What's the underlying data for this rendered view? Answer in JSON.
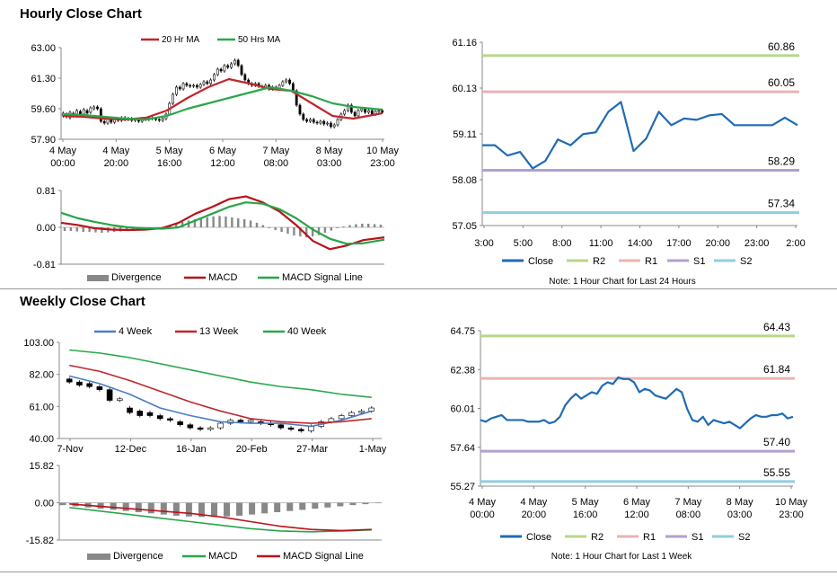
{
  "titles": {
    "hourly": "Hourly Close Chart",
    "weekly": "Weekly Close Chart"
  },
  "colors": {
    "ma_short": "#c0262d",
    "ma_long": "#2aa84a",
    "price": "#000000",
    "close": "#1f6bb5",
    "r2": "#b8d68a",
    "r1": "#eab3b3",
    "s1": "#b39fcf",
    "s2": "#92cde0",
    "divergence": "#888888",
    "macd": "#b8121a",
    "signal": "#27a546",
    "wk4": "#4a7cc4"
  },
  "chart_data": [
    {
      "id": "hourly_price",
      "type": "line",
      "legend": [
        "20 Hr MA",
        "50 Hrs MA"
      ],
      "y_ticks": [
        "63.00",
        "61.30",
        "59.60",
        "57.90"
      ],
      "ylim": [
        57.9,
        63.0
      ],
      "x_labels": [
        [
          "4 May",
          "00:00"
        ],
        [
          "4 May",
          "20:00"
        ],
        [
          "5 May",
          "16:00"
        ],
        [
          "6 May",
          "12:00"
        ],
        [
          "7 May",
          "08:00"
        ],
        [
          "8 May",
          "03:00"
        ],
        [
          "10 May",
          "23:00"
        ]
      ],
      "x_range": [
        0,
        154
      ],
      "candles": [
        [
          59.2,
          59.35
        ],
        [
          59.3,
          59.15
        ],
        [
          59.1,
          59.4
        ],
        [
          59.35,
          59.2
        ],
        [
          59.2,
          59.5
        ],
        [
          59.45,
          59.3
        ],
        [
          59.3,
          59.55
        ],
        [
          59.5,
          59.35
        ],
        [
          59.4,
          59.65
        ],
        [
          59.6,
          59.7
        ],
        [
          59.7,
          59.6
        ],
        [
          59.6,
          58.9
        ],
        [
          58.9,
          58.8
        ],
        [
          58.8,
          59.05
        ],
        [
          59.0,
          58.85
        ],
        [
          58.85,
          59.0
        ],
        [
          59.0,
          58.95
        ],
        [
          58.95,
          59.1
        ],
        [
          59.1,
          59.0
        ],
        [
          59.0,
          59.05
        ],
        [
          59.05,
          58.95
        ],
        [
          58.95,
          59.0
        ],
        [
          59.0,
          58.9
        ],
        [
          58.9,
          59.05
        ],
        [
          59.05,
          59.0
        ],
        [
          59.0,
          59.1
        ],
        [
          59.1,
          59.05
        ],
        [
          59.05,
          59.0
        ],
        [
          59.0,
          58.95
        ],
        [
          58.95,
          59.05
        ],
        [
          59.05,
          59.3
        ],
        [
          59.3,
          59.9
        ],
        [
          59.9,
          60.4
        ],
        [
          60.4,
          60.8
        ],
        [
          60.8,
          60.7
        ],
        [
          60.7,
          61.0
        ],
        [
          61.0,
          60.9
        ],
        [
          60.9,
          60.85
        ],
        [
          60.85,
          60.9
        ],
        [
          60.9,
          60.8
        ],
        [
          60.8,
          60.95
        ],
        [
          60.95,
          61.1
        ],
        [
          61.1,
          61.0
        ],
        [
          61.0,
          61.2
        ],
        [
          61.2,
          61.5
        ],
        [
          61.5,
          61.8
        ],
        [
          61.8,
          61.7
        ],
        [
          61.7,
          62.0
        ],
        [
          62.0,
          61.9
        ],
        [
          61.9,
          62.1
        ],
        [
          62.1,
          62.3
        ],
        [
          62.3,
          62.0
        ],
        [
          62.0,
          61.5
        ],
        [
          61.5,
          61.2
        ],
        [
          61.2,
          61.0
        ],
        [
          61.0,
          60.9
        ],
        [
          60.9,
          61.0
        ],
        [
          61.0,
          60.85
        ],
        [
          60.85,
          60.8
        ],
        [
          60.8,
          60.9
        ],
        [
          60.9,
          60.7
        ],
        [
          60.7,
          60.8
        ],
        [
          60.8,
          60.75
        ],
        [
          60.75,
          60.9
        ],
        [
          60.9,
          61.1
        ],
        [
          61.1,
          61.2
        ],
        [
          61.2,
          61.0
        ],
        [
          61.0,
          60.6
        ],
        [
          60.6,
          59.8
        ],
        [
          59.8,
          59.3
        ],
        [
          59.3,
          59.0
        ],
        [
          59.0,
          58.9
        ],
        [
          58.9,
          59.0
        ],
        [
          59.0,
          58.85
        ],
        [
          58.85,
          58.8
        ],
        [
          58.8,
          58.9
        ],
        [
          58.9,
          58.75
        ],
        [
          58.75,
          58.8
        ],
        [
          58.8,
          58.6
        ],
        [
          58.6,
          58.7
        ],
        [
          58.7,
          59.0
        ],
        [
          59.0,
          59.3
        ],
        [
          59.3,
          59.5
        ],
        [
          59.5,
          59.8
        ],
        [
          59.8,
          59.4
        ],
        [
          59.4,
          59.2
        ],
        [
          59.2,
          59.5
        ],
        [
          59.5,
          59.6
        ],
        [
          59.6,
          59.4
        ],
        [
          59.4,
          59.5
        ],
        [
          59.5,
          59.3
        ],
        [
          59.3,
          59.45
        ],
        [
          59.45,
          59.5
        ],
        [
          59.5,
          59.4
        ]
      ],
      "series": [
        {
          "name": "20 Hr MA",
          "key": "ma_short",
          "x": [
            0,
            10,
            20,
            30,
            40,
            50,
            60,
            70,
            80,
            90,
            100,
            110,
            120,
            130,
            140,
            154
          ],
          "y": [
            59.2,
            59.15,
            59.05,
            59.0,
            59.1,
            59.5,
            60.2,
            60.8,
            61.25,
            61.0,
            60.7,
            60.6,
            59.9,
            59.2,
            59.05,
            59.35
          ]
        },
        {
          "name": "50 Hrs MA",
          "key": "ma_long",
          "x": [
            0,
            10,
            20,
            30,
            40,
            50,
            60,
            70,
            80,
            90,
            100,
            110,
            120,
            130,
            140,
            154
          ],
          "y": [
            59.3,
            59.25,
            59.15,
            59.05,
            59.0,
            59.2,
            59.6,
            59.9,
            60.2,
            60.5,
            60.8,
            60.6,
            60.3,
            59.9,
            59.7,
            59.55
          ]
        }
      ]
    },
    {
      "id": "hourly_macd",
      "type": "line",
      "y_ticks": [
        "0.81",
        "0.00",
        "-0.81"
      ],
      "ylim": [
        -0.81,
        0.81
      ],
      "legend": [
        "Divergence",
        "MACD",
        "MACD Signal Line"
      ],
      "divergence": [
        -0.08,
        -0.08,
        -0.09,
        -0.1,
        -0.1,
        -0.11,
        -0.12,
        -0.11,
        -0.1,
        -0.09,
        -0.08,
        -0.07,
        -0.06,
        -0.05,
        -0.04,
        -0.02,
        0.02,
        0.05,
        0.08,
        0.12,
        0.15,
        0.18,
        0.2,
        0.22,
        0.24,
        0.25,
        0.24,
        0.22,
        0.2,
        0.18,
        0.15,
        0.1,
        0.05,
        -0.02,
        -0.06,
        -0.1,
        -0.14,
        -0.18,
        -0.2,
        -0.22,
        -0.2,
        -0.17,
        -0.12,
        -0.07,
        -0.02,
        0.02,
        0.05,
        0.07,
        0.08,
        0.08,
        0.07,
        0.06
      ],
      "series": [
        {
          "name": "MACD",
          "key": "macd",
          "x": [
            0,
            8,
            16,
            24,
            32,
            40,
            48,
            56,
            64,
            72,
            80,
            88,
            96,
            104,
            112,
            120,
            128,
            136,
            144,
            154
          ],
          "y": [
            0.1,
            0.05,
            -0.02,
            -0.05,
            -0.06,
            -0.05,
            -0.02,
            0.1,
            0.3,
            0.45,
            0.62,
            0.68,
            0.55,
            0.35,
            0.05,
            -0.3,
            -0.48,
            -0.4,
            -0.28,
            -0.22
          ]
        },
        {
          "name": "MACD Signal Line",
          "key": "signal",
          "x": [
            0,
            8,
            16,
            24,
            32,
            40,
            48,
            56,
            64,
            72,
            80,
            88,
            96,
            104,
            112,
            120,
            128,
            136,
            144,
            154
          ],
          "y": [
            0.32,
            0.2,
            0.12,
            0.05,
            0.0,
            -0.02,
            -0.03,
            0.0,
            0.15,
            0.3,
            0.45,
            0.55,
            0.52,
            0.4,
            0.2,
            -0.05,
            -0.25,
            -0.36,
            -0.35,
            -0.27
          ]
        }
      ]
    },
    {
      "id": "hourly_24h",
      "type": "line",
      "y_ticks": [
        "61.16",
        "60.13",
        "59.11",
        "58.08",
        "57.05"
      ],
      "ylim": [
        57.05,
        61.16
      ],
      "x_labels": [
        "3:00",
        "5:00",
        "8:00",
        "11:00",
        "14:00",
        "17:00",
        "20:00",
        "23:00",
        "2:00"
      ],
      "levels": [
        {
          "name": "R2",
          "value": 60.86,
          "label": "60.86"
        },
        {
          "name": "R1",
          "value": 60.05,
          "label": "60.05"
        },
        {
          "name": "S1",
          "value": 58.29,
          "label": "58.29"
        },
        {
          "name": "S2",
          "value": 57.34,
          "label": "57.34"
        }
      ],
      "legend": [
        "Close",
        "R2",
        "R1",
        "S1",
        "S2"
      ],
      "note": "Note: 1 Hour Chart for Last 24 Hours",
      "series": [
        {
          "name": "Close",
          "key": "close",
          "y": [
            58.85,
            58.85,
            58.62,
            58.7,
            58.33,
            58.5,
            58.98,
            58.85,
            59.1,
            59.14,
            59.6,
            59.82,
            58.72,
            59.0,
            59.6,
            59.3,
            59.45,
            59.42,
            59.52,
            59.55,
            59.3,
            59.3,
            59.3,
            59.3,
            59.47,
            59.3
          ]
        }
      ]
    },
    {
      "id": "weekly_price",
      "type": "line",
      "legend": [
        "4 Week",
        "13 Week",
        "40 Week"
      ],
      "y_ticks": [
        "103.00",
        "82.00",
        "61.00",
        "40.00"
      ],
      "ylim": [
        40,
        103
      ],
      "x_labels": [
        "7-Nov",
        "12-Dec",
        "16-Jan",
        "20-Feb",
        "27-Mar",
        "1-May"
      ],
      "x_range": [
        0,
        30
      ],
      "candles": [
        [
          79,
          77
        ],
        [
          77,
          75
        ],
        [
          76,
          74
        ],
        [
          74,
          72
        ],
        [
          72,
          65
        ],
        [
          65,
          66
        ],
        [
          60,
          57
        ],
        [
          58,
          55
        ],
        [
          57,
          55
        ],
        [
          55,
          53
        ],
        [
          53,
          52
        ],
        [
          51,
          49
        ],
        [
          49,
          47
        ],
        [
          47,
          46
        ],
        [
          46,
          47
        ],
        [
          47,
          50
        ],
        [
          50,
          52
        ],
        [
          52,
          51
        ],
        [
          51,
          52
        ],
        [
          51,
          50
        ],
        [
          50,
          49
        ],
        [
          49,
          47
        ],
        [
          47,
          46
        ],
        [
          46,
          45
        ],
        [
          45,
          48
        ],
        [
          48,
          51
        ],
        [
          51,
          53
        ],
        [
          53,
          55
        ],
        [
          55,
          57
        ],
        [
          57,
          58
        ],
        [
          58,
          60
        ]
      ],
      "series": [
        {
          "name": "4 Week",
          "key": "wk4",
          "x": [
            0,
            3,
            6,
            9,
            12,
            15,
            18,
            21,
            24,
            27,
            30
          ],
          "y": [
            81,
            76,
            69,
            60,
            55,
            51,
            50,
            50,
            48,
            52,
            58
          ]
        },
        {
          "name": "13 Week",
          "key": "ma_short",
          "x": [
            0,
            3,
            6,
            9,
            12,
            15,
            18,
            21,
            24,
            27,
            30
          ],
          "y": [
            88,
            84,
            78,
            71,
            64,
            58,
            53,
            51,
            50,
            51,
            53
          ]
        },
        {
          "name": "40 Week",
          "key": "ma_long",
          "x": [
            0,
            3,
            6,
            9,
            12,
            15,
            18,
            21,
            24,
            27,
            30
          ],
          "y": [
            98,
            96,
            93,
            89,
            85,
            81,
            77,
            74,
            72,
            69,
            67
          ]
        }
      ]
    },
    {
      "id": "weekly_macd",
      "type": "line",
      "y_ticks": [
        "15.82",
        "0.00",
        "-15.82"
      ],
      "ylim": [
        -15.82,
        15.82
      ],
      "legend": [
        "Divergence",
        "MACD",
        "MACD Signal Line"
      ],
      "divergence": [
        -1,
        -1.5,
        -2,
        -2.5,
        -3,
        -3.5,
        -4,
        -4.5,
        -5,
        -5.5,
        -5.8,
        -6,
        -6,
        -5.8,
        -5.5,
        -5,
        -4.5,
        -4,
        -3.5,
        -3,
        -2.5,
        -2,
        -1.5,
        -1,
        -0.6,
        -0.2
      ],
      "series": [
        {
          "name": "MACD",
          "key": "signal",
          "x": [
            0,
            3,
            6,
            9,
            12,
            15,
            18,
            21,
            24,
            27,
            30
          ],
          "y": [
            -2,
            -3.5,
            -5,
            -6.5,
            -8,
            -9.5,
            -11,
            -12,
            -12.3,
            -12,
            -11.5
          ]
        },
        {
          "name": "MACD Signal Line",
          "key": "macd",
          "x": [
            0,
            3,
            6,
            9,
            12,
            15,
            18,
            21,
            24,
            27,
            30
          ],
          "y": [
            -0.5,
            -1.5,
            -2.5,
            -3.5,
            -4.5,
            -6,
            -8,
            -10,
            -11.3,
            -11.8,
            -11.3
          ]
        }
      ]
    },
    {
      "id": "weekly_1w",
      "type": "line",
      "y_ticks": [
        "64.75",
        "62.38",
        "60.01",
        "57.64",
        "55.27"
      ],
      "ylim": [
        55.27,
        64.75
      ],
      "x_labels": [
        [
          "4 May",
          "00:00"
        ],
        [
          "4 May",
          "20:00"
        ],
        [
          "5 May",
          "16:00"
        ],
        [
          "6 May",
          "12:00"
        ],
        [
          "7 May",
          "08:00"
        ],
        [
          "8 May",
          "03:00"
        ],
        [
          "10 May",
          "23:00"
        ]
      ],
      "levels": [
        {
          "name": "R2",
          "value": 64.43,
          "label": "64.43"
        },
        {
          "name": "R1",
          "value": 61.84,
          "label": "61.84"
        },
        {
          "name": "S1",
          "value": 57.4,
          "label": "57.40"
        },
        {
          "name": "S2",
          "value": 55.55,
          "label": "55.55"
        }
      ],
      "legend": [
        "Close",
        "R2",
        "R1",
        "S1",
        "S2"
      ],
      "note": "Note: 1 Hour Chart for Last 1 Week",
      "series": [
        {
          "name": "Close",
          "key": "close",
          "y": [
            59.3,
            59.2,
            59.4,
            59.5,
            59.6,
            59.3,
            59.3,
            59.3,
            59.3,
            59.2,
            59.2,
            59.2,
            59.3,
            59.1,
            59.2,
            59.5,
            60.2,
            60.6,
            60.9,
            60.6,
            60.8,
            61.0,
            60.9,
            61.4,
            61.6,
            61.5,
            61.9,
            61.8,
            61.8,
            61.6,
            61.0,
            61.2,
            61.1,
            60.8,
            60.7,
            60.6,
            60.9,
            61.2,
            61.0,
            60.0,
            59.3,
            59.2,
            59.5,
            59.0,
            59.3,
            59.2,
            59.1,
            59.2,
            59.0,
            58.8,
            59.1,
            59.4,
            59.6,
            59.5,
            59.5,
            59.6,
            59.6,
            59.7,
            59.4,
            59.5
          ]
        }
      ]
    }
  ]
}
